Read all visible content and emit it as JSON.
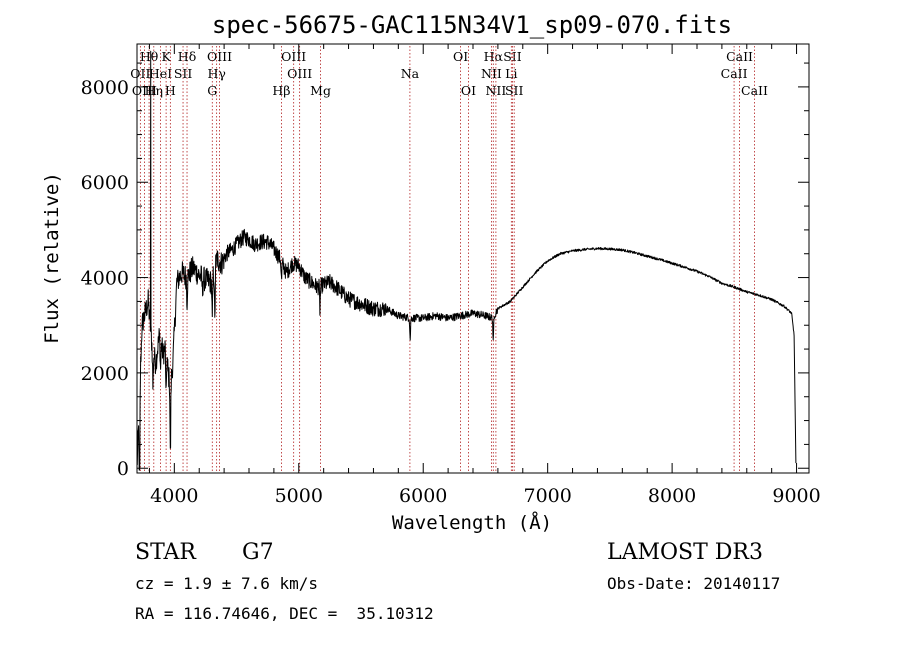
{
  "chart_data": {
    "type": "line",
    "title": "spec-56675-GAC115N34V1_sp09-070.fits",
    "xlabel": "Wavelength (Å)",
    "ylabel": "Flux (relative)",
    "xlim": [
      3700,
      9100
    ],
    "ylim": [
      -100,
      8900
    ],
    "xticks": [
      4000,
      5000,
      6000,
      7000,
      8000,
      9000
    ],
    "xtick_labels": [
      "4000",
      "5000",
      "6000",
      "7000",
      "8000",
      "9000"
    ],
    "yticks": [
      0,
      2000,
      4000,
      6000,
      8000
    ],
    "ytick_labels": [
      "0",
      "2000",
      "4000",
      "6000",
      "8000"
    ],
    "grid": false,
    "line_color": "#000000",
    "marker_color": "#b22222",
    "spectrum_anchors": {
      "x": [
        3700,
        3720,
        3740,
        3760,
        3790,
        3820,
        3850,
        3880,
        3910,
        3935,
        3950,
        3970,
        3990,
        4020,
        4060,
        4100,
        4150,
        4200,
        4250,
        4300,
        4340,
        4380,
        4420,
        4470,
        4520,
        4560,
        4600,
        4650,
        4700,
        4750,
        4800,
        4850,
        4900,
        4950,
        5000,
        5050,
        5100,
        5150,
        5200,
        5250,
        5300,
        5400,
        5500,
        5600,
        5700,
        5800,
        5900,
        6000,
        6100,
        6200,
        6300,
        6400,
        6500,
        6560,
        6600,
        6700,
        6800,
        6900,
        7000,
        7100,
        7200,
        7300,
        7400,
        7500,
        7600,
        7700,
        7800,
        7900,
        8000,
        8100,
        8200,
        8300,
        8400,
        8500,
        8600,
        8700,
        8800,
        8900,
        8960,
        8980,
        8995
      ],
      "y": [
        0,
        1400,
        3000,
        3200,
        3500,
        2600,
        2200,
        2800,
        2400,
        2600,
        2000,
        1700,
        2300,
        3900,
        4100,
        4000,
        4200,
        4050,
        3950,
        3900,
        4400,
        4300,
        4500,
        4600,
        4750,
        4850,
        4800,
        4700,
        4750,
        4750,
        4600,
        4400,
        4100,
        4300,
        4250,
        4000,
        3900,
        3800,
        3850,
        3900,
        3800,
        3550,
        3450,
        3350,
        3350,
        3200,
        3150,
        3150,
        3200,
        3150,
        3200,
        3250,
        3200,
        3150,
        3350,
        3500,
        3800,
        4100,
        4350,
        4500,
        4560,
        4590,
        4610,
        4600,
        4580,
        4520,
        4450,
        4380,
        4300,
        4220,
        4130,
        4020,
        3880,
        3800,
        3700,
        3630,
        3540,
        3400,
        3250,
        2800,
        100
      ]
    },
    "absorption_features": [
      {
        "x": 3720,
        "depth": 2500
      },
      {
        "x": 3828,
        "depth": 800
      },
      {
        "x": 3889,
        "depth": 600
      },
      {
        "x": 3934,
        "depth": 1200
      },
      {
        "x": 3968,
        "depth": 1500
      },
      {
        "x": 4102,
        "depth": 500
      },
      {
        "x": 4226,
        "depth": 300
      },
      {
        "x": 4305,
        "depth": 900
      },
      {
        "x": 4325,
        "depth": 1200
      },
      {
        "x": 4861,
        "depth": 400
      },
      {
        "x": 5170,
        "depth": 500
      },
      {
        "x": 5895,
        "depth": 450
      },
      {
        "x": 6563,
        "depth": 550
      }
    ],
    "emission_spike": {
      "x": 3810,
      "value": 8750
    },
    "line_markers": [
      {
        "label": "Hθ",
        "x": 3797,
        "row": 0
      },
      {
        "label": "OII",
        "x": 3727,
        "row": 1
      },
      {
        "label": "OIII",
        "x": 3760,
        "row": 2
      },
      {
        "label": "Hη",
        "x": 3835,
        "row": 2
      },
      {
        "label": "K",
        "x": 3934,
        "row": 0
      },
      {
        "label": "HeI",
        "x": 3889,
        "row": 1
      },
      {
        "label": "H",
        "x": 3968,
        "row": 2
      },
      {
        "label": "Hδ",
        "x": 4102,
        "row": 0
      },
      {
        "label": "SII",
        "x": 4070,
        "row": 1
      },
      {
        "label": "OIII",
        "x": 4363,
        "row": 0
      },
      {
        "label": "Hγ",
        "x": 4340,
        "row": 1
      },
      {
        "label": "G",
        "x": 4305,
        "row": 2
      },
      {
        "label": "OIII",
        "x": 4959,
        "row": 0
      },
      {
        "label": "OIII",
        "x": 5007,
        "row": 1
      },
      {
        "label": "Hβ",
        "x": 4861,
        "row": 2
      },
      {
        "label": "Mg",
        "x": 5175,
        "row": 2
      },
      {
        "label": "Na",
        "x": 5893,
        "row": 1
      },
      {
        "label": "OI",
        "x": 6300,
        "row": 0
      },
      {
        "label": "OI",
        "x": 6364,
        "row": 2
      },
      {
        "label": "Hα",
        "x": 6563,
        "row": 0
      },
      {
        "label": "NII",
        "x": 6548,
        "row": 1
      },
      {
        "label": "NII",
        "x": 6584,
        "row": 2
      },
      {
        "label": "SII",
        "x": 6717,
        "row": 0
      },
      {
        "label": "Li",
        "x": 6708,
        "row": 1
      },
      {
        "label": "SII",
        "x": 6731,
        "row": 2
      },
      {
        "label": "CaII",
        "x": 8542,
        "row": 0
      },
      {
        "label": "CaII",
        "x": 8498,
        "row": 1
      },
      {
        "label": "CaII",
        "x": 8662,
        "row": 2
      }
    ]
  },
  "info": {
    "class_label": "STAR",
    "subclass": "G7",
    "survey": "LAMOST DR3",
    "redshift": "cz = 1.9 ± 7.6 km/s",
    "obs_date": "Obs-Date: 20140117",
    "coords": "RA = 116.74646, DEC =  35.10312"
  }
}
